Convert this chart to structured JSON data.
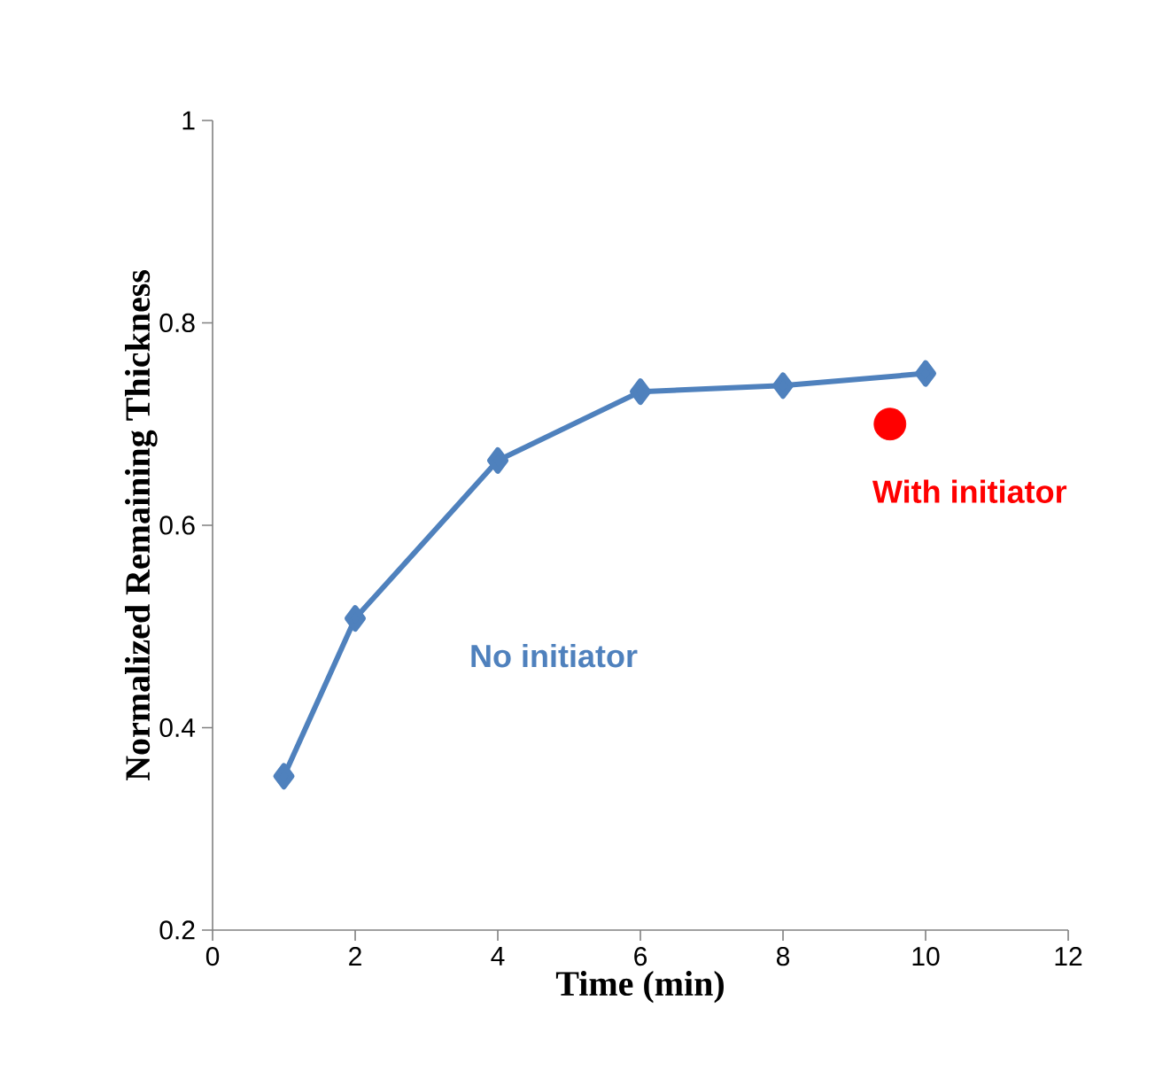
{
  "chart_data": {
    "type": "line",
    "xlabel": "Time (min)",
    "ylabel": "Normalized Remaining Thickness",
    "xlim": [
      0,
      12
    ],
    "xticks": [
      0,
      2,
      4,
      6,
      8,
      10,
      12
    ],
    "ylim": [
      0.2,
      1
    ],
    "yticks": [
      0.2,
      0.4,
      0.6,
      0.8,
      1
    ],
    "grid": false,
    "legend": false,
    "series": [
      {
        "name": "No initiator",
        "color": "#4f81bd",
        "marker": "diamond",
        "x": [
          1,
          2,
          4,
          6,
          8,
          10
        ],
        "values": [
          0.352,
          0.508,
          0.664,
          0.732,
          0.738,
          0.75
        ]
      },
      {
        "name": "With initiator",
        "type": "scatter",
        "color": "#ff0000",
        "marker": "circle",
        "x": [
          9.5
        ],
        "values": [
          0.7
        ]
      }
    ]
  }
}
